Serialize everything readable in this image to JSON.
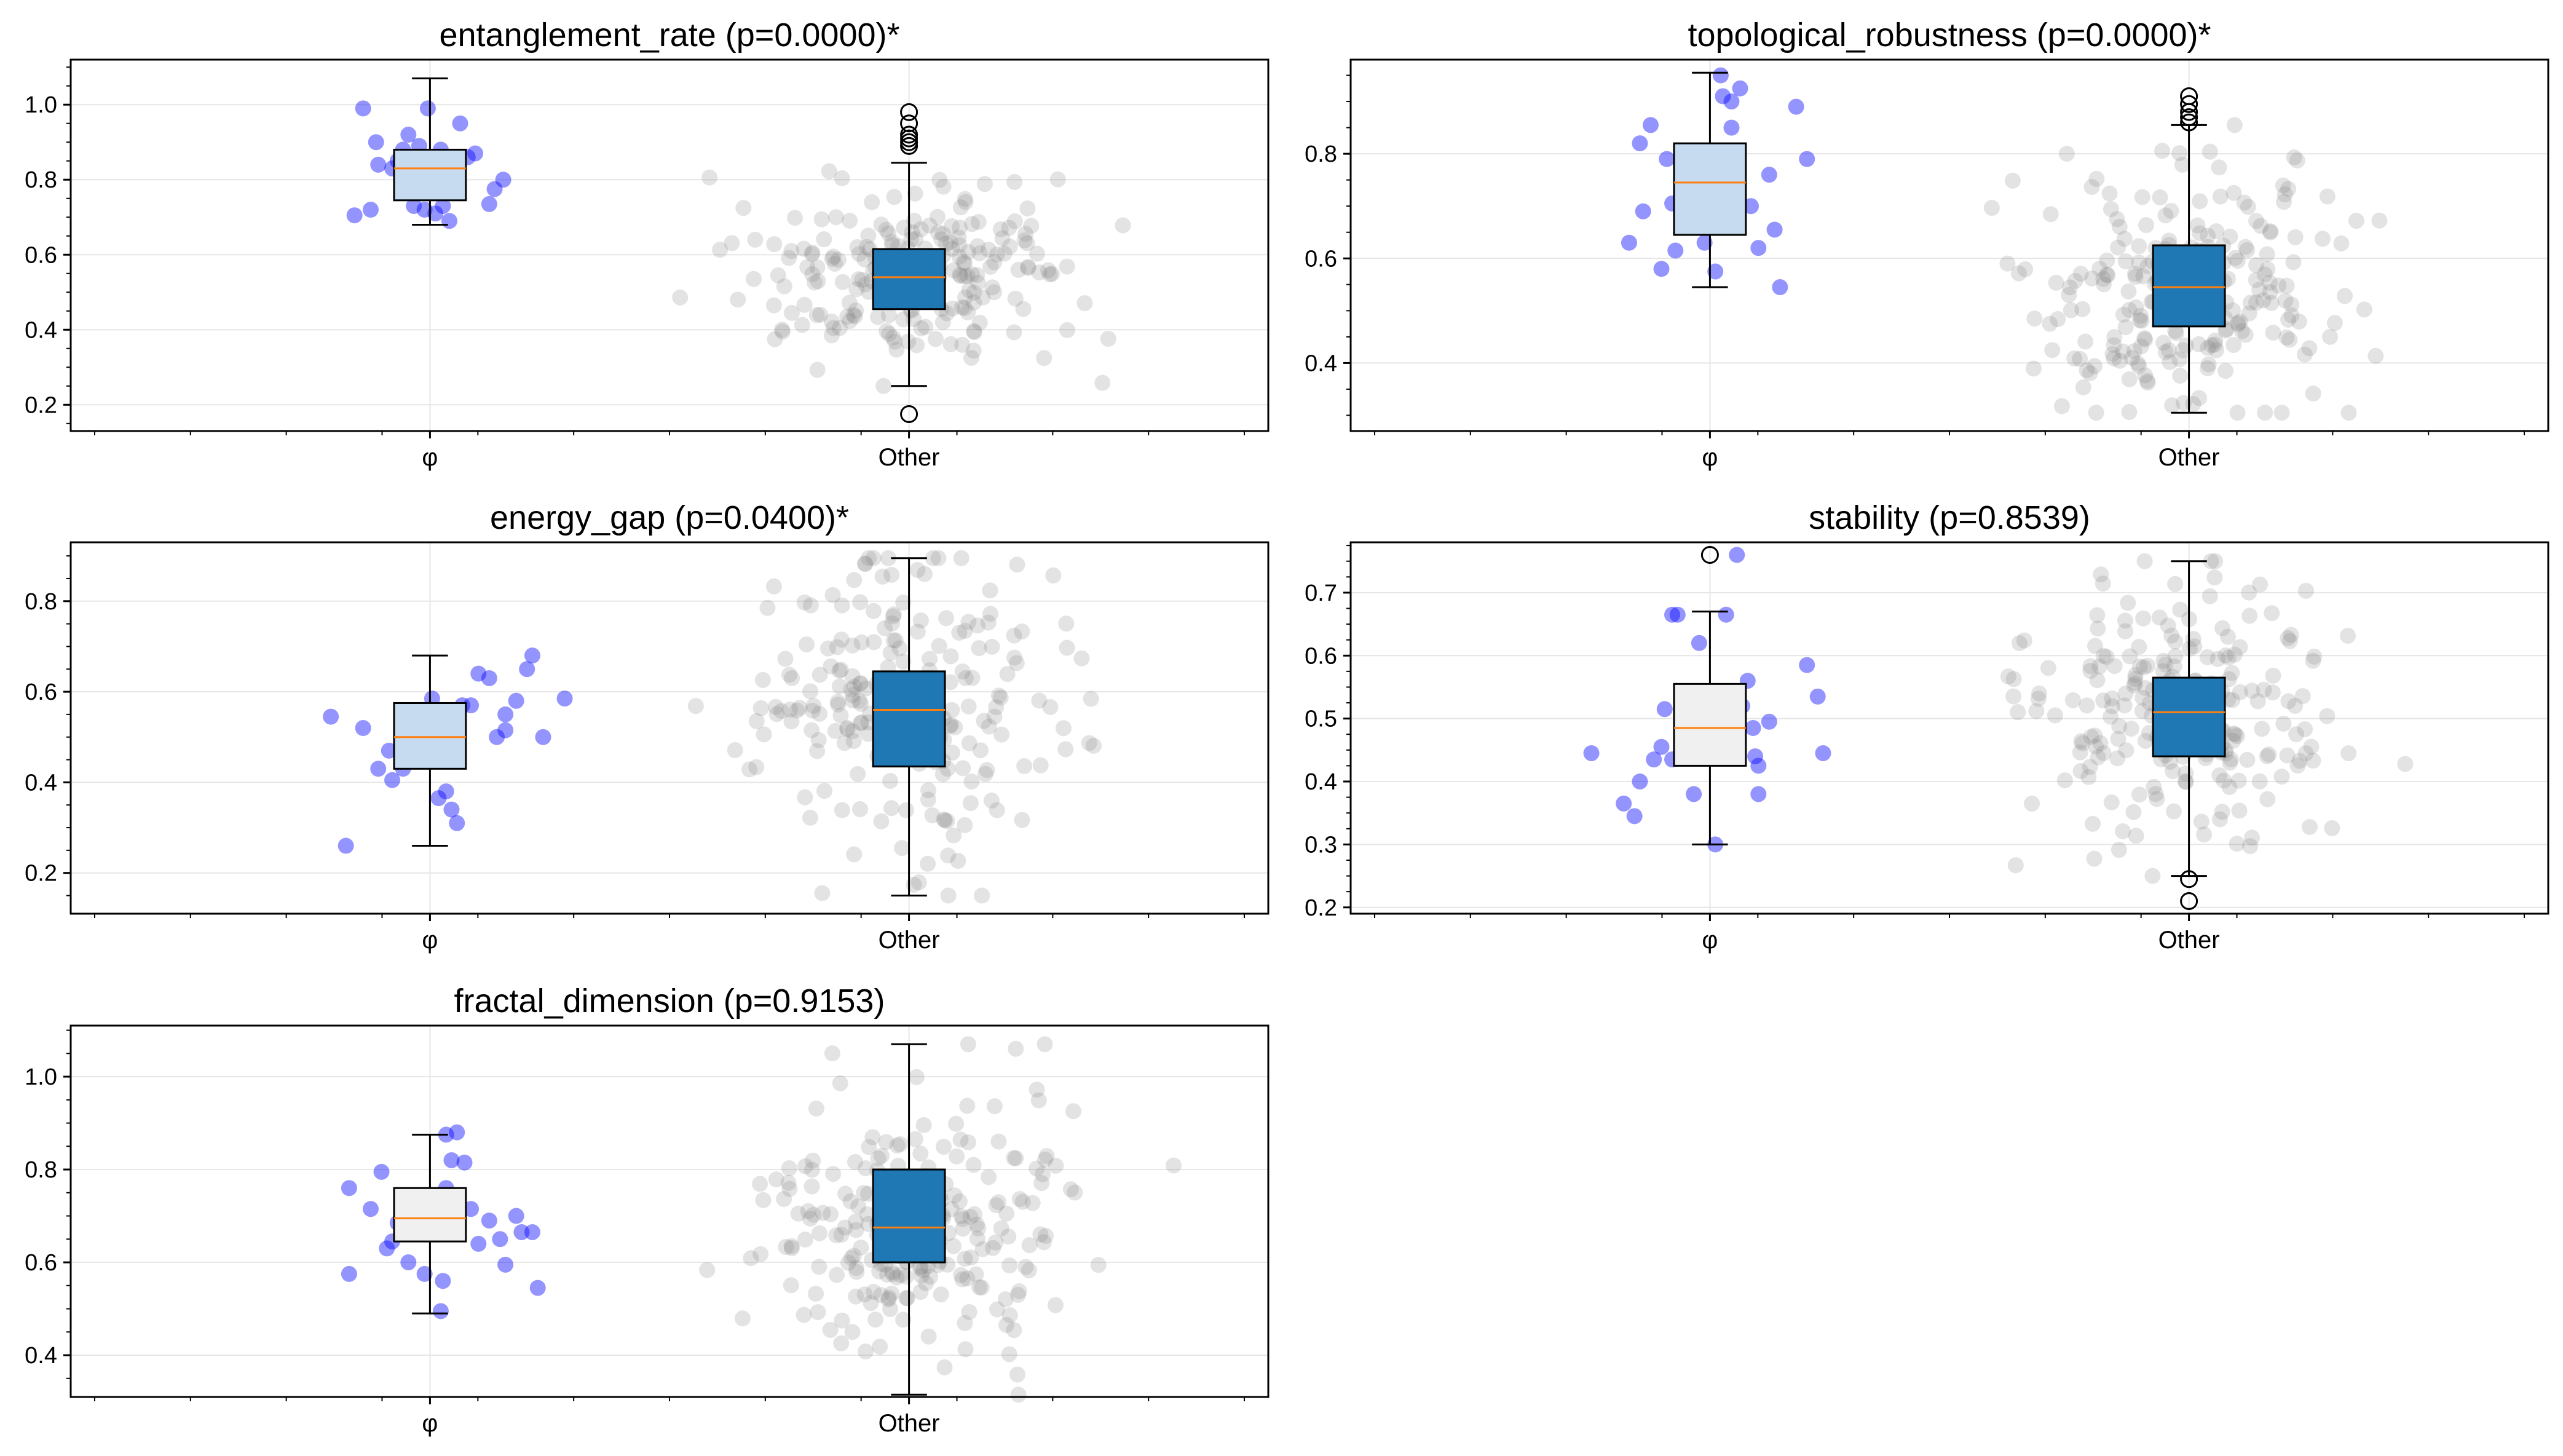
{
  "colors": {
    "phi_box_significant": "#c6dbef",
    "phi_box_not_significant": "#f0f0f0",
    "other_box": "#1f77b4",
    "median": "#ff7f0e",
    "phi_points": "#0000ff",
    "other_points": "#808080",
    "grid": "#e6e6e6"
  },
  "chart_data": [
    {
      "type": "box",
      "title": "entanglement_rate (p=0.0000)*",
      "categories": [
        "φ",
        "Other"
      ],
      "ylim": [
        0.13,
        1.12
      ],
      "yticks": [
        0.2,
        0.4,
        0.6,
        0.8,
        1.0
      ],
      "ytick_labels": [
        "0.2",
        "0.4",
        "0.6",
        "0.8",
        "1.0"
      ],
      "grid": true,
      "phi_significant": true,
      "boxes": [
        {
          "name": "φ",
          "whisker_low": 0.68,
          "q1": 0.745,
          "median": 0.83,
          "q3": 0.88,
          "whisker_high": 1.07,
          "outliers": []
        },
        {
          "name": "Other",
          "whisker_low": 0.25,
          "q1": 0.455,
          "median": 0.54,
          "q3": 0.615,
          "whisker_high": 0.845,
          "outliers": [
            0.89,
            0.9,
            0.91,
            0.92,
            0.95,
            0.98,
            0.175
          ]
        }
      ],
      "phi_points": [
        [
          -0.7,
          0.705
        ],
        [
          -0.55,
          0.72
        ],
        [
          -0.62,
          0.99
        ],
        [
          -0.5,
          0.9
        ],
        [
          -0.48,
          0.84
        ],
        [
          -0.35,
          0.83
        ],
        [
          -0.3,
          0.85
        ],
        [
          -0.2,
          0.92
        ],
        [
          -0.25,
          0.88
        ],
        [
          -0.15,
          0.73
        ],
        [
          -0.1,
          0.89
        ],
        [
          -0.05,
          0.72
        ],
        [
          -0.02,
          0.99
        ],
        [
          0.05,
          0.71
        ],
        [
          0.12,
          0.73
        ],
        [
          0.18,
          0.69
        ],
        [
          0.1,
          0.88
        ],
        [
          0.2,
          0.86
        ],
        [
          0.28,
          0.95
        ],
        [
          0.35,
          0.86
        ],
        [
          0.42,
          0.87
        ],
        [
          0.55,
          0.735
        ],
        [
          0.6,
          0.775
        ],
        [
          0.68,
          0.8
        ],
        [
          0.08,
          0.83
        ]
      ]
    },
    {
      "type": "box",
      "title": "topological_robustness (p=0.0000)*",
      "categories": [
        "φ",
        "Other"
      ],
      "ylim": [
        0.27,
        0.98
      ],
      "yticks": [
        0.4,
        0.6,
        0.8
      ],
      "ytick_labels": [
        "0.4",
        "0.6",
        "0.8"
      ],
      "grid": true,
      "phi_significant": true,
      "boxes": [
        {
          "name": "φ",
          "whisker_low": 0.545,
          "q1": 0.645,
          "median": 0.745,
          "q3": 0.82,
          "whisker_high": 0.955,
          "outliers": []
        },
        {
          "name": "Other",
          "whisker_low": 0.305,
          "q1": 0.47,
          "median": 0.545,
          "q3": 0.625,
          "whisker_high": 0.855,
          "outliers": [
            0.86,
            0.87,
            0.88,
            0.895,
            0.91
          ]
        }
      ],
      "phi_points": [
        [
          -0.75,
          0.63
        ],
        [
          -0.65,
          0.82
        ],
        [
          -0.55,
          0.855
        ],
        [
          -0.62,
          0.69
        ],
        [
          -0.45,
          0.58
        ],
        [
          -0.35,
          0.705
        ],
        [
          -0.4,
          0.79
        ],
        [
          -0.32,
          0.615
        ],
        [
          -0.2,
          0.775
        ],
        [
          -0.1,
          0.66
        ],
        [
          -0.05,
          0.63
        ],
        [
          0.05,
          0.575
        ],
        [
          0.1,
          0.95
        ],
        [
          0.12,
          0.91
        ],
        [
          0.2,
          0.9
        ],
        [
          0.28,
          0.925
        ],
        [
          0.2,
          0.85
        ],
        [
          0.38,
          0.7
        ],
        [
          0.45,
          0.62
        ],
        [
          0.55,
          0.76
        ],
        [
          0.6,
          0.655
        ],
        [
          0.65,
          0.545
        ],
        [
          0.8,
          0.89
        ],
        [
          0.9,
          0.79
        ],
        [
          -0.25,
          0.72
        ]
      ]
    },
    {
      "type": "box",
      "title": "energy_gap (p=0.0400)*",
      "categories": [
        "φ",
        "Other"
      ],
      "ylim": [
        0.11,
        0.93
      ],
      "yticks": [
        0.2,
        0.4,
        0.6,
        0.8
      ],
      "ytick_labels": [
        "0.2",
        "0.4",
        "0.6",
        "0.8"
      ],
      "grid": true,
      "phi_significant": true,
      "boxes": [
        {
          "name": "φ",
          "whisker_low": 0.26,
          "q1": 0.43,
          "median": 0.5,
          "q3": 0.575,
          "whisker_high": 0.68,
          "outliers": []
        },
        {
          "name": "Other",
          "whisker_low": 0.15,
          "q1": 0.435,
          "median": 0.56,
          "q3": 0.645,
          "whisker_high": 0.895,
          "outliers": []
        }
      ],
      "phi_points": [
        [
          -0.92,
          0.545
        ],
        [
          -0.78,
          0.26
        ],
        [
          -0.62,
          0.52
        ],
        [
          -0.48,
          0.43
        ],
        [
          -0.38,
          0.47
        ],
        [
          -0.35,
          0.405
        ],
        [
          -0.25,
          0.43
        ],
        [
          -0.15,
          0.46
        ],
        [
          -0.05,
          0.56
        ],
        [
          0.02,
          0.585
        ],
        [
          0.08,
          0.365
        ],
        [
          0.15,
          0.38
        ],
        [
          0.2,
          0.34
        ],
        [
          0.25,
          0.31
        ],
        [
          0.3,
          0.57
        ],
        [
          0.38,
          0.57
        ],
        [
          0.45,
          0.64
        ],
        [
          0.55,
          0.63
        ],
        [
          0.62,
          0.5
        ],
        [
          0.7,
          0.515
        ],
        [
          0.8,
          0.58
        ],
        [
          0.9,
          0.65
        ],
        [
          0.95,
          0.68
        ],
        [
          1.05,
          0.5
        ],
        [
          1.25,
          0.585
        ],
        [
          0.7,
          0.55
        ]
      ]
    },
    {
      "type": "box",
      "title": "stability (p=0.8539)",
      "categories": [
        "φ",
        "Other"
      ],
      "ylim": [
        0.19,
        0.78
      ],
      "yticks": [
        0.2,
        0.3,
        0.4,
        0.5,
        0.6,
        0.7
      ],
      "ytick_labels": [
        "0.2",
        "0.3",
        "0.4",
        "0.5",
        "0.6",
        "0.7"
      ],
      "grid": true,
      "phi_significant": false,
      "boxes": [
        {
          "name": "φ",
          "whisker_low": 0.3,
          "q1": 0.425,
          "median": 0.485,
          "q3": 0.555,
          "whisker_high": 0.67,
          "outliers": [
            0.76
          ]
        },
        {
          "name": "Other",
          "whisker_low": 0.25,
          "q1": 0.44,
          "median": 0.51,
          "q3": 0.565,
          "whisker_high": 0.75,
          "outliers": [
            0.245,
            0.21
          ]
        }
      ],
      "phi_points": [
        [
          -1.1,
          0.445
        ],
        [
          -0.8,
          0.365
        ],
        [
          -0.7,
          0.345
        ],
        [
          -0.65,
          0.4
        ],
        [
          -0.52,
          0.435
        ],
        [
          -0.45,
          0.455
        ],
        [
          -0.35,
          0.435
        ],
        [
          -0.42,
          0.515
        ],
        [
          -0.35,
          0.665
        ],
        [
          -0.3,
          0.665
        ],
        [
          -0.15,
          0.38
        ],
        [
          -0.1,
          0.62
        ],
        [
          0.05,
          0.3
        ],
        [
          0.15,
          0.665
        ],
        [
          0.2,
          0.49
        ],
        [
          0.25,
          0.76
        ],
        [
          0.3,
          0.52
        ],
        [
          0.35,
          0.56
        ],
        [
          0.4,
          0.485
        ],
        [
          0.42,
          0.44
        ],
        [
          0.45,
          0.38
        ],
        [
          0.45,
          0.425
        ],
        [
          0.55,
          0.495
        ],
        [
          0.9,
          0.585
        ],
        [
          1.0,
          0.535
        ],
        [
          1.05,
          0.445
        ]
      ]
    },
    {
      "type": "box",
      "title": "fractal_dimension (p=0.9153)",
      "categories": [
        "φ",
        "Other"
      ],
      "ylim": [
        0.31,
        1.11
      ],
      "yticks": [
        0.4,
        0.6,
        0.8,
        1.0
      ],
      "ytick_labels": [
        "0.4",
        "0.6",
        "0.8",
        "1.0"
      ],
      "grid": true,
      "phi_significant": false,
      "boxes": [
        {
          "name": "φ",
          "whisker_low": 0.49,
          "q1": 0.645,
          "median": 0.695,
          "q3": 0.76,
          "whisker_high": 0.875,
          "outliers": []
        },
        {
          "name": "Other",
          "whisker_low": 0.315,
          "q1": 0.6,
          "median": 0.675,
          "q3": 0.8,
          "whisker_high": 1.07,
          "outliers": []
        }
      ],
      "phi_points": [
        [
          -0.75,
          0.76
        ],
        [
          -0.75,
          0.575
        ],
        [
          -0.55,
          0.715
        ],
        [
          -0.45,
          0.795
        ],
        [
          -0.4,
          0.63
        ],
        [
          -0.35,
          0.645
        ],
        [
          -0.3,
          0.685
        ],
        [
          -0.2,
          0.6
        ],
        [
          -0.1,
          0.74
        ],
        [
          -0.05,
          0.575
        ],
        [
          0.05,
          0.66
        ],
        [
          0.1,
          0.495
        ],
        [
          0.12,
          0.56
        ],
        [
          0.15,
          0.875
        ],
        [
          0.2,
          0.82
        ],
        [
          0.25,
          0.88
        ],
        [
          0.32,
          0.815
        ],
        [
          0.38,
          0.715
        ],
        [
          0.45,
          0.64
        ],
        [
          0.55,
          0.69
        ],
        [
          0.65,
          0.65
        ],
        [
          0.7,
          0.595
        ],
        [
          0.8,
          0.7
        ],
        [
          0.85,
          0.665
        ],
        [
          0.95,
          0.665
        ],
        [
          1.0,
          0.545
        ],
        [
          0.15,
          0.76
        ]
      ]
    }
  ]
}
